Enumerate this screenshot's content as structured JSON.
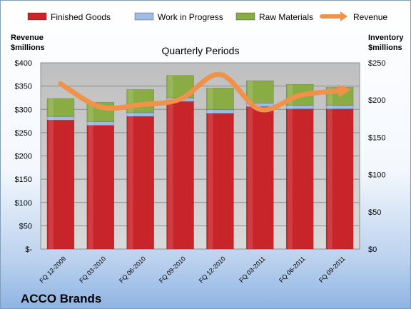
{
  "chart_data": {
    "type": "bar",
    "stacked": true,
    "title": "Quarterly Periods",
    "company": "ACCO Brands",
    "categories": [
      "FQ 12-2009",
      "FQ 03-2010",
      "FQ 06-2010",
      "FQ 09-2010",
      "FQ 12-2010",
      "FQ 03-2011",
      "FQ 06-2011",
      "FQ 09-2011"
    ],
    "left_axis": {
      "label_line1": "Revenue",
      "label_line2": "$millions",
      "range": [
        0,
        400
      ],
      "ticks": [
        0,
        50,
        100,
        150,
        200,
        250,
        300,
        350,
        400
      ],
      "tick_labels": [
        "$-",
        "$50",
        "$100",
        "$150",
        "$200",
        "$250",
        "$300",
        "$350",
        "$400"
      ]
    },
    "right_axis": {
      "label_line1": "Inventory",
      "label_line2": "$millions",
      "range": [
        0,
        250
      ],
      "ticks": [
        0,
        50,
        100,
        150,
        200,
        250
      ],
      "tick_labels": [
        "$0",
        "$50",
        "$100",
        "$150",
        "$200",
        "$250"
      ]
    },
    "series": [
      {
        "name": "Finished Goods",
        "axis": "right",
        "color": "#c8252b",
        "values": [
          173,
          166,
          178,
          198,
          182,
          191,
          188,
          188
        ]
      },
      {
        "name": "Work in Progress",
        "axis": "right",
        "color": "#9dbbe4",
        "values": [
          5,
          5,
          5,
          5,
          5,
          5,
          5,
          5
        ]
      },
      {
        "name": "Raw Materials",
        "axis": "right",
        "color": "#8aac45",
        "values": [
          24,
          26,
          31,
          30,
          29,
          30,
          28,
          24
        ]
      },
      {
        "name": "Revenue",
        "axis": "left",
        "type": "line",
        "color": "#f0924a",
        "values": [
          355,
          305,
          310,
          322,
          375,
          300,
          330,
          340
        ]
      }
    ],
    "grid": true,
    "legend_position": "top"
  }
}
